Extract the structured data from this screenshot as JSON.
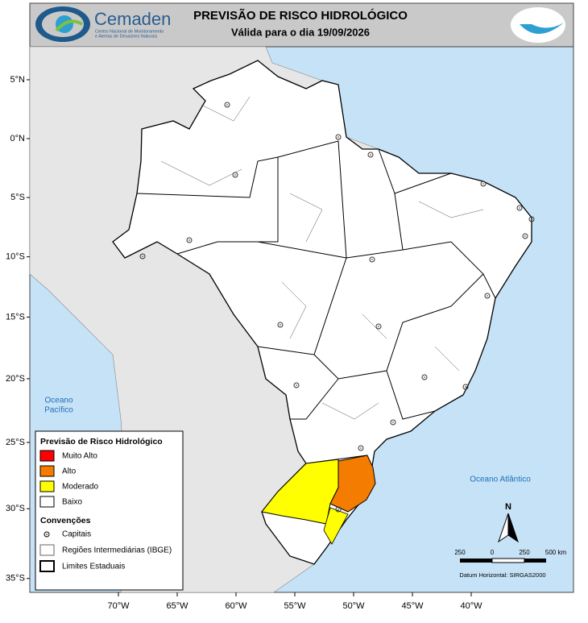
{
  "header": {
    "logo_name": "Cemaden",
    "logo_subtitle": [
      "Centro Nacional de Monitoramento",
      "e Alertas de Desastres Naturais"
    ],
    "title": "PREVISÃO DE RISCO HIDROLÓGICO",
    "subtitle": "Válida para o dia 19/09/2026"
  },
  "map": {
    "lat_ticks": [
      {
        "value": 5,
        "label": "5°N"
      },
      {
        "value": 0,
        "label": "0°N"
      },
      {
        "value": -5,
        "label": "5°S"
      },
      {
        "value": -10,
        "label": "10°S"
      },
      {
        "value": -15,
        "label": "15°S"
      },
      {
        "value": -20,
        "label": "20°S"
      },
      {
        "value": -25,
        "label": "25°S"
      },
      {
        "value": -30,
        "label": "30°S"
      },
      {
        "value": -35,
        "label": "35°S"
      }
    ],
    "lon_ticks": [
      {
        "value": -70,
        "label": "70°W"
      },
      {
        "value": -65,
        "label": "65°W"
      },
      {
        "value": -60,
        "label": "60°W"
      },
      {
        "value": -55,
        "label": "55°W"
      },
      {
        "value": -50,
        "label": "50°W"
      },
      {
        "value": -45,
        "label": "45°W"
      },
      {
        "value": -40,
        "label": "40°W"
      }
    ],
    "ocean_labels": {
      "pacific": [
        "Oceano",
        "Pacífico"
      ],
      "atlantic": "Oceano Atlântico"
    }
  },
  "legend": {
    "title": "Previsão de Risco Hidrológico",
    "levels": [
      {
        "label": "Muito Alto",
        "color": "#ff0000"
      },
      {
        "label": "Alto",
        "color": "#f47c00"
      },
      {
        "label": "Moderado",
        "color": "#ffff00"
      },
      {
        "label": "Baixo",
        "color": "#ffffff"
      }
    ],
    "conventions_title": "Convenções",
    "conventions": [
      "Capitais",
      "Regiões Intermediárias (IBGE)",
      "Limites Estaduais"
    ]
  },
  "north_arrow": "N",
  "scale_bar": {
    "labels": [
      "250",
      "0",
      "250",
      "500 km"
    ]
  },
  "datum": "Datum Horizontal: SIRGAS2000"
}
